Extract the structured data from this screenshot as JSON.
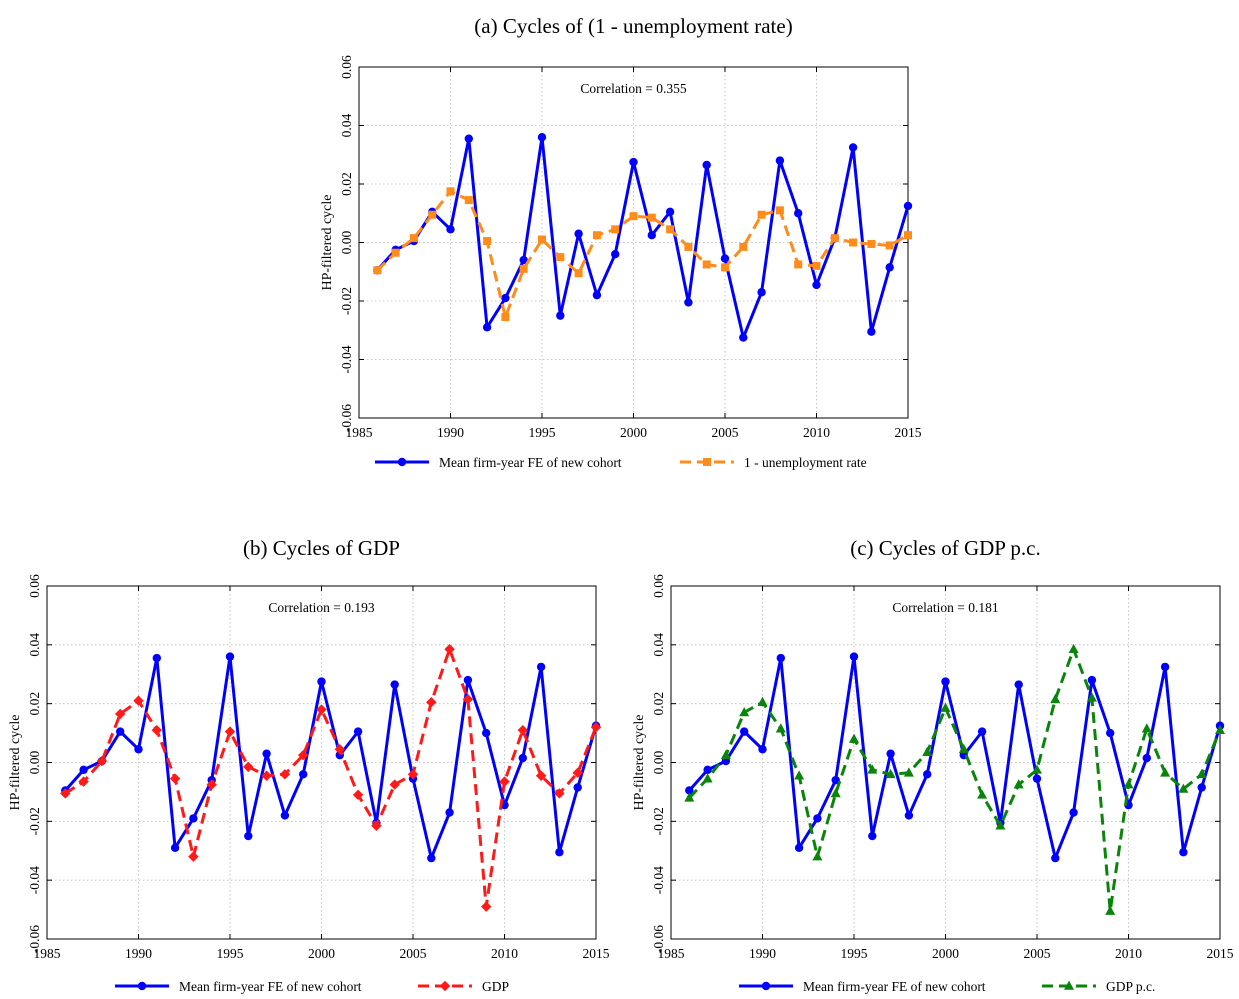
{
  "colors": {
    "firm_fe": "#0000ff",
    "unemployment": "#ff8c1a",
    "gdp": "#ff1a1a",
    "gdppc": "#0a840a"
  },
  "chart_data": [
    {
      "type": "line",
      "title": "(a) Cycles of (1 - unemployment rate)",
      "xlabel": "",
      "ylabel": "HP-filtered cycle",
      "xlim": [
        1985,
        2015
      ],
      "ylim": [
        -0.06,
        0.06
      ],
      "xticks": [
        1985,
        1990,
        1995,
        2000,
        2005,
        2010,
        2015
      ],
      "yticks": [
        -0.06,
        -0.04,
        -0.02,
        0.0,
        0.02,
        0.04,
        0.06
      ],
      "ytick_labels": [
        "-0.06",
        "-0.04",
        "-0.02",
        "0.00",
        "0.02",
        "0.04",
        "0.06"
      ],
      "grid": true,
      "legend_position": "bottom",
      "annotation": "Correlation = 0.355",
      "x": [
        1986,
        1987,
        1988,
        1989,
        1990,
        1991,
        1992,
        1993,
        1994,
        1995,
        1996,
        1997,
        1998,
        1999,
        2000,
        2001,
        2002,
        2003,
        2004,
        2005,
        2006,
        2007,
        2008,
        2009,
        2010,
        2011,
        2012,
        2013,
        2014,
        2015
      ],
      "series": [
        {
          "name": "Mean firm-year FE of new cohort",
          "color": "#0000ff",
          "dash": "solid",
          "marker": "circle",
          "values": [
            -0.0095,
            -0.0025,
            0.0005,
            0.0105,
            0.0045,
            0.0355,
            -0.029,
            -0.019,
            -0.006,
            0.036,
            -0.025,
            0.003,
            -0.018,
            -0.004,
            0.0275,
            0.0025,
            0.0105,
            -0.0205,
            0.0265,
            -0.0055,
            -0.0325,
            -0.017,
            0.028,
            0.01,
            -0.0145,
            0.0015,
            0.0325,
            -0.0305,
            -0.0085,
            0.0125
          ]
        },
        {
          "name": "1 - unemployment rate",
          "color": "#ff8c1a",
          "dash": "dashed",
          "marker": "square",
          "values": [
            -0.0095,
            -0.0035,
            0.0015,
            0.0095,
            0.0175,
            0.0145,
            0.0005,
            -0.0255,
            -0.009,
            0.001,
            -0.005,
            -0.0105,
            0.0025,
            0.0045,
            0.009,
            0.0085,
            0.0045,
            -0.0015,
            -0.0075,
            -0.0085,
            -0.0015,
            0.0095,
            0.011,
            -0.0075,
            -0.008,
            0.0015,
            0.0,
            -0.0005,
            -0.001,
            0.0025
          ]
        }
      ]
    },
    {
      "type": "line",
      "title": "(b) Cycles of GDP",
      "xlabel": "",
      "ylabel": "HP-filtered cycle",
      "xlim": [
        1985,
        2015
      ],
      "ylim": [
        -0.06,
        0.06
      ],
      "xticks": [
        1985,
        1990,
        1995,
        2000,
        2005,
        2010,
        2015
      ],
      "yticks": [
        -0.06,
        -0.04,
        -0.02,
        0.0,
        0.02,
        0.04,
        0.06
      ],
      "ytick_labels": [
        "-0.06",
        "-0.04",
        "-0.02",
        "0.00",
        "0.02",
        "0.04",
        "0.06"
      ],
      "grid": true,
      "legend_position": "bottom",
      "annotation": "Correlation = 0.193",
      "x": [
        1986,
        1987,
        1988,
        1989,
        1990,
        1991,
        1992,
        1993,
        1994,
        1995,
        1996,
        1997,
        1998,
        1999,
        2000,
        2001,
        2002,
        2003,
        2004,
        2005,
        2006,
        2007,
        2008,
        2009,
        2010,
        2011,
        2012,
        2013,
        2014,
        2015
      ],
      "series": [
        {
          "name": "Mean firm-year FE of new cohort",
          "color": "#0000ff",
          "dash": "solid",
          "marker": "circle",
          "values": [
            -0.0095,
            -0.0025,
            0.0005,
            0.0105,
            0.0045,
            0.0355,
            -0.029,
            -0.019,
            -0.006,
            0.036,
            -0.025,
            0.003,
            -0.018,
            -0.004,
            0.0275,
            0.0025,
            0.0105,
            -0.0205,
            0.0265,
            -0.0055,
            -0.0325,
            -0.017,
            0.028,
            0.01,
            -0.0145,
            0.0015,
            0.0325,
            -0.0305,
            -0.0085,
            0.0125
          ]
        },
        {
          "name": "GDP",
          "color": "#ff1a1a",
          "dash": "dashed",
          "marker": "diamond",
          "values": [
            -0.0105,
            -0.0065,
            0.0005,
            0.0165,
            0.021,
            0.011,
            -0.0055,
            -0.032,
            -0.0075,
            0.0105,
            -0.0015,
            -0.0045,
            -0.004,
            0.0025,
            0.018,
            0.0045,
            -0.011,
            -0.0215,
            -0.0075,
            -0.004,
            0.0205,
            0.0385,
            0.0215,
            -0.049,
            -0.0065,
            0.011,
            -0.0045,
            -0.0105,
            -0.0035,
            0.012
          ]
        }
      ]
    },
    {
      "type": "line",
      "title": "(c) Cycles of GDP p.c.",
      "xlabel": "",
      "ylabel": "HP-filtered cycle",
      "xlim": [
        1985,
        2015
      ],
      "ylim": [
        -0.06,
        0.06
      ],
      "xticks": [
        1985,
        1990,
        1995,
        2000,
        2005,
        2010,
        2015
      ],
      "yticks": [
        -0.06,
        -0.04,
        -0.02,
        0.0,
        0.02,
        0.04,
        0.06
      ],
      "ytick_labels": [
        "-0.06",
        "-0.04",
        "-0.02",
        "0.00",
        "0.02",
        "0.04",
        "0.06"
      ],
      "grid": true,
      "legend_position": "bottom",
      "annotation": "Correlation = 0.181",
      "x": [
        1986,
        1987,
        1988,
        1989,
        1990,
        1991,
        1992,
        1993,
        1994,
        1995,
        1996,
        1997,
        1998,
        1999,
        2000,
        2001,
        2002,
        2003,
        2004,
        2005,
        2006,
        2007,
        2008,
        2009,
        2010,
        2011,
        2012,
        2013,
        2014,
        2015
      ],
      "series": [
        {
          "name": "Mean firm-year FE of new cohort",
          "color": "#0000ff",
          "dash": "solid",
          "marker": "circle",
          "values": [
            -0.0095,
            -0.0025,
            0.0005,
            0.0105,
            0.0045,
            0.0355,
            -0.029,
            -0.019,
            -0.006,
            0.036,
            -0.025,
            0.003,
            -0.018,
            -0.004,
            0.0275,
            0.0025,
            0.0105,
            -0.0205,
            0.0265,
            -0.0055,
            -0.0325,
            -0.017,
            0.028,
            0.01,
            -0.0145,
            0.0015,
            0.0325,
            -0.0305,
            -0.0085,
            0.0125
          ]
        },
        {
          "name": "GDP p.c.",
          "color": "#0a840a",
          "dash": "dashed",
          "marker": "triangle",
          "values": [
            -0.012,
            -0.0055,
            0.0025,
            0.017,
            0.0205,
            0.0115,
            -0.0045,
            -0.032,
            -0.0105,
            0.008,
            -0.0025,
            -0.004,
            -0.0035,
            0.0035,
            0.0185,
            0.0045,
            -0.011,
            -0.0215,
            -0.0075,
            -0.0025,
            0.0215,
            0.0385,
            0.022,
            -0.0505,
            -0.0075,
            0.0115,
            -0.0035,
            -0.009,
            -0.004,
            0.011
          ]
        }
      ]
    }
  ]
}
